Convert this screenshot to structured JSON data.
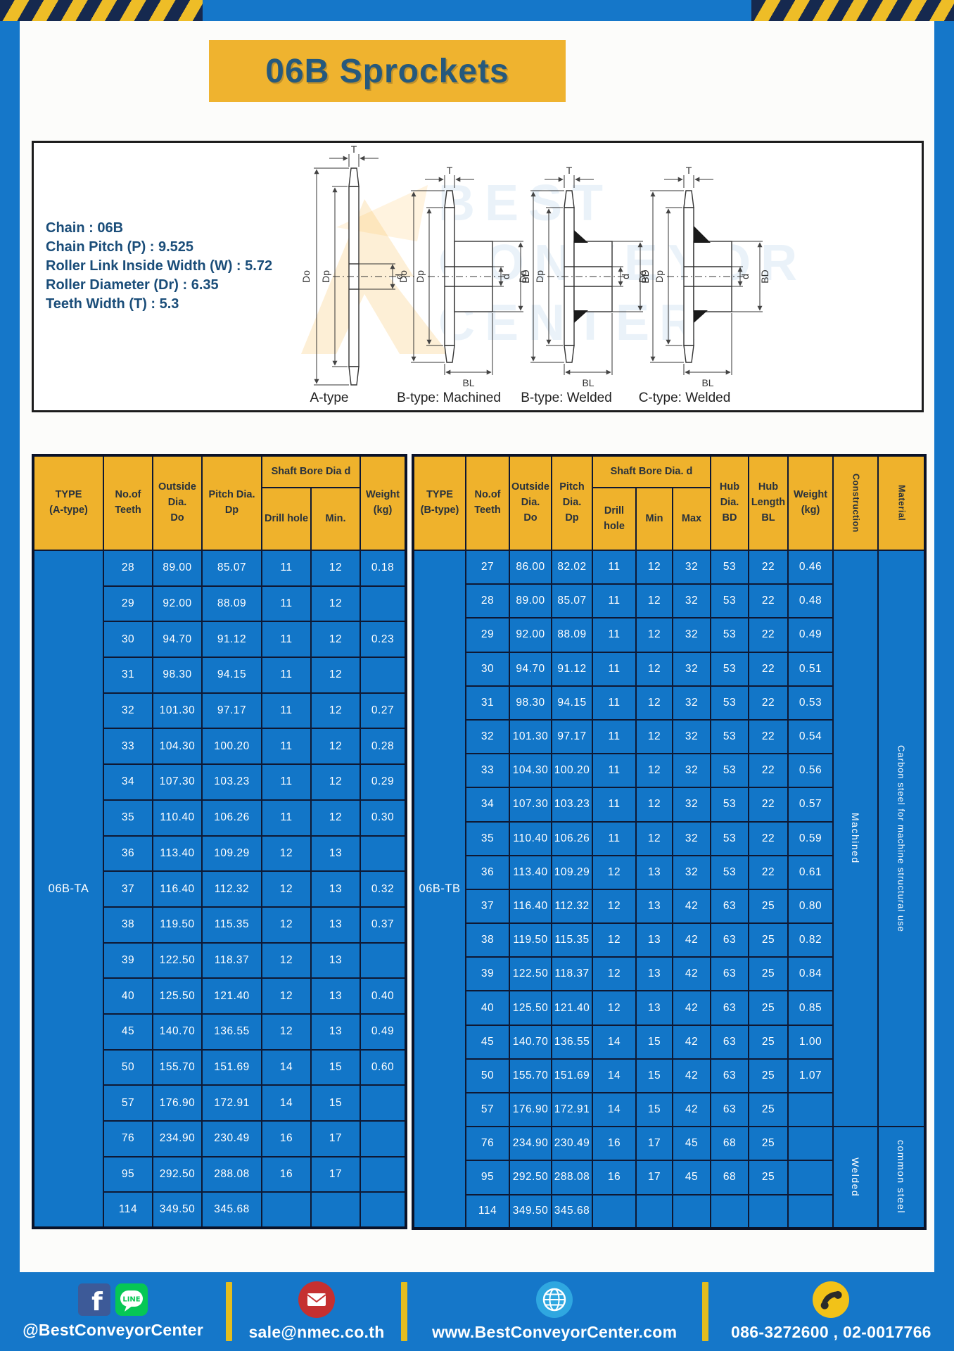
{
  "colors": {
    "page_blue": "#1577c9",
    "cell_blue": "#1276c8",
    "header_yellow": "#efb22c",
    "border_navy": "#0e1833",
    "title_blue": "#26597c",
    "banner_yellow": "#efb32f"
  },
  "title": "06B Sprockets",
  "specs": [
    "Chain : 06B",
    "Chain Pitch (P) : 9.525",
    "Roller Link Inside Width (W) : 5.72",
    "Roller Diameter (Dr) : 6.35",
    "Teeth Width (T) : 5.3"
  ],
  "diagram": {
    "captions": [
      "A-type",
      "B-type: Machined",
      "B-type: Welded",
      "C-type: Welded"
    ],
    "dims": {
      "t": "T",
      "outside": "Do",
      "pitch": "Dp",
      "bore": "d",
      "hub_dia": "BD",
      "hub_len": "BL"
    },
    "watermark": [
      "BEST",
      "CONVEYOR",
      "CENTER"
    ]
  },
  "table_a": {
    "type_label": "06B-TA",
    "header": {
      "type": "TYPE\n(A-type)",
      "teeth": "No.of\nTeeth",
      "outside": "Outside\nDia.\nDo",
      "pitch": "Pitch Dia.\nDp",
      "shaft": "Shaft Bore Dia d",
      "drill": "Drill hole",
      "min": "Min.",
      "weight": "Weight\n(kg)"
    },
    "rows": [
      [
        "28",
        "89.00",
        "85.07",
        "11",
        "12",
        "0.18"
      ],
      [
        "29",
        "92.00",
        "88.09",
        "11",
        "12",
        ""
      ],
      [
        "30",
        "94.70",
        "91.12",
        "11",
        "12",
        "0.23"
      ],
      [
        "31",
        "98.30",
        "94.15",
        "11",
        "12",
        ""
      ],
      [
        "32",
        "101.30",
        "97.17",
        "11",
        "12",
        "0.27"
      ],
      [
        "33",
        "104.30",
        "100.20",
        "11",
        "12",
        "0.28"
      ],
      [
        "34",
        "107.30",
        "103.23",
        "11",
        "12",
        "0.29"
      ],
      [
        "35",
        "110.40",
        "106.26",
        "11",
        "12",
        "0.30"
      ],
      [
        "36",
        "113.40",
        "109.29",
        "12",
        "13",
        ""
      ],
      [
        "37",
        "116.40",
        "112.32",
        "12",
        "13",
        "0.32"
      ],
      [
        "38",
        "119.50",
        "115.35",
        "12",
        "13",
        "0.37"
      ],
      [
        "39",
        "122.50",
        "118.37",
        "12",
        "13",
        ""
      ],
      [
        "40",
        "125.50",
        "121.40",
        "12",
        "13",
        "0.40"
      ],
      [
        "45",
        "140.70",
        "136.55",
        "12",
        "13",
        "0.49"
      ],
      [
        "50",
        "155.70",
        "151.69",
        "14",
        "15",
        "0.60"
      ],
      [
        "57",
        "176.90",
        "172.91",
        "14",
        "15",
        ""
      ],
      [
        "76",
        "234.90",
        "230.49",
        "16",
        "17",
        ""
      ],
      [
        "95",
        "292.50",
        "288.08",
        "16",
        "17",
        ""
      ],
      [
        "114",
        "349.50",
        "345.68",
        "",
        "",
        ""
      ]
    ]
  },
  "table_b": {
    "type_label": "06B-TB",
    "header": {
      "type": "TYPE\n(B-type)",
      "teeth": "No.of\nTeeth",
      "outside": "Outside\nDia.\nDo",
      "pitch": "Pitch\nDia.\nDp",
      "shaft": "Shaft Bore Dia. d",
      "drill": "Drill hole",
      "min": "Min",
      "max": "Max",
      "hub_dia": "Hub\nDia.\nBD",
      "hub_len": "Hub\nLength\nBL",
      "weight": "Weight\n(kg)",
      "construction": "Construction",
      "material": "Material"
    },
    "rows": [
      [
        "27",
        "86.00",
        "82.02",
        "11",
        "12",
        "32",
        "53",
        "22",
        "0.46"
      ],
      [
        "28",
        "89.00",
        "85.07",
        "11",
        "12",
        "32",
        "53",
        "22",
        "0.48"
      ],
      [
        "29",
        "92.00",
        "88.09",
        "11",
        "12",
        "32",
        "53",
        "22",
        "0.49"
      ],
      [
        "30",
        "94.70",
        "91.12",
        "11",
        "12",
        "32",
        "53",
        "22",
        "0.51"
      ],
      [
        "31",
        "98.30",
        "94.15",
        "11",
        "12",
        "32",
        "53",
        "22",
        "0.53"
      ],
      [
        "32",
        "101.30",
        "97.17",
        "11",
        "12",
        "32",
        "53",
        "22",
        "0.54"
      ],
      [
        "33",
        "104.30",
        "100.20",
        "11",
        "12",
        "32",
        "53",
        "22",
        "0.56"
      ],
      [
        "34",
        "107.30",
        "103.23",
        "11",
        "12",
        "32",
        "53",
        "22",
        "0.57"
      ],
      [
        "35",
        "110.40",
        "106.26",
        "11",
        "12",
        "32",
        "53",
        "22",
        "0.59"
      ],
      [
        "36",
        "113.40",
        "109.29",
        "12",
        "13",
        "32",
        "53",
        "22",
        "0.61"
      ],
      [
        "37",
        "116.40",
        "112.32",
        "12",
        "13",
        "42",
        "63",
        "25",
        "0.80"
      ],
      [
        "38",
        "119.50",
        "115.35",
        "12",
        "13",
        "42",
        "63",
        "25",
        "0.82"
      ],
      [
        "39",
        "122.50",
        "118.37",
        "12",
        "13",
        "42",
        "63",
        "25",
        "0.84"
      ],
      [
        "40",
        "125.50",
        "121.40",
        "12",
        "13",
        "42",
        "63",
        "25",
        "0.85"
      ],
      [
        "45",
        "140.70",
        "136.55",
        "14",
        "15",
        "42",
        "63",
        "25",
        "1.00"
      ],
      [
        "50",
        "155.70",
        "151.69",
        "14",
        "15",
        "42",
        "63",
        "25",
        "1.07"
      ],
      [
        "57",
        "176.90",
        "172.91",
        "14",
        "15",
        "42",
        "63",
        "25",
        ""
      ],
      [
        "76",
        "234.90",
        "230.49",
        "16",
        "17",
        "45",
        "68",
        "25",
        ""
      ],
      [
        "95",
        "292.50",
        "288.08",
        "16",
        "17",
        "45",
        "68",
        "25",
        ""
      ],
      [
        "114",
        "349.50",
        "345.68",
        "",
        "",
        "",
        "",
        "",
        ""
      ]
    ],
    "span_cols": [
      {
        "name": "construction",
        "groups": [
          {
            "label": "Machined",
            "span": 17
          },
          {
            "label": "Welded",
            "span": 3
          }
        ]
      },
      {
        "name": "material",
        "groups": [
          {
            "label": "Carbon steel for machine structural use",
            "span": 17
          },
          {
            "label": "common steel",
            "span": 3
          }
        ]
      }
    ]
  },
  "footer": {
    "facebook_handle": "@BestConveyorCenter",
    "line_label": "LINE",
    "email": "sale@nmec.co.th",
    "website": "www.BestConveyorCenter.com",
    "phone": "086-3272600 , 02-0017766"
  }
}
